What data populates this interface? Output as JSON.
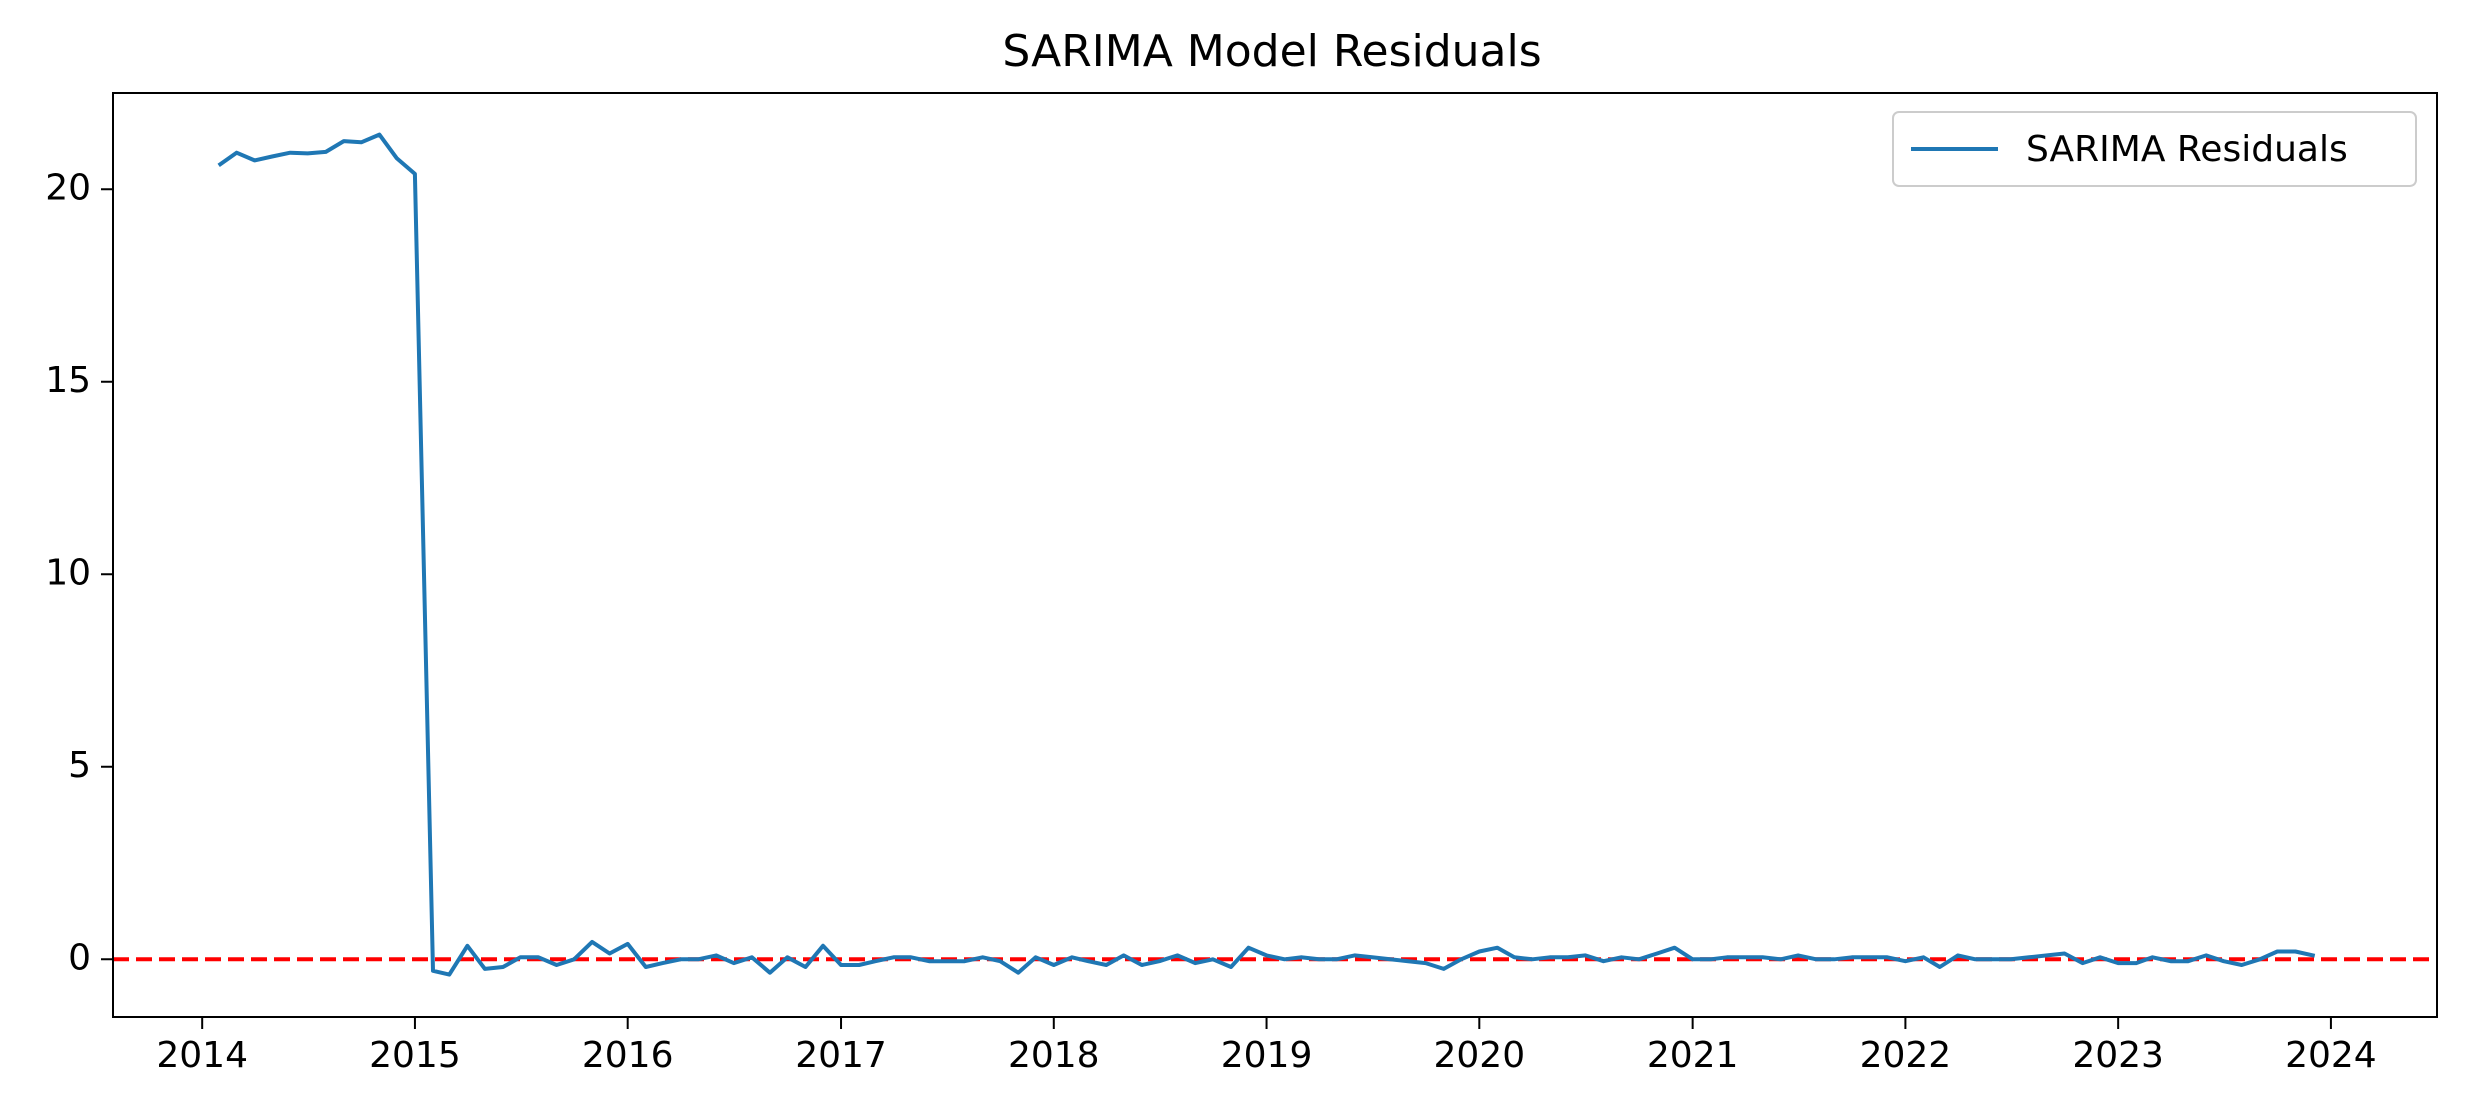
{
  "chart_data": {
    "type": "line",
    "title": "SARIMA Model Residuals",
    "xlabel": "",
    "ylabel": "",
    "xlim": [
      "2013-08-01",
      "2024-07-01"
    ],
    "ylim": [
      -1.5,
      22.5
    ],
    "x_ticks": [
      {
        "date": "2014-01-01",
        "label": "2014"
      },
      {
        "date": "2015-01-01",
        "label": "2015"
      },
      {
        "date": "2016-01-01",
        "label": "2016"
      },
      {
        "date": "2017-01-01",
        "label": "2017"
      },
      {
        "date": "2018-01-01",
        "label": "2018"
      },
      {
        "date": "2019-01-01",
        "label": "2019"
      },
      {
        "date": "2020-01-01",
        "label": "2020"
      },
      {
        "date": "2021-01-01",
        "label": "2021"
      },
      {
        "date": "2022-01-01",
        "label": "2022"
      },
      {
        "date": "2023-01-01",
        "label": "2023"
      },
      {
        "date": "2024-01-01",
        "label": "2024"
      }
    ],
    "y_ticks": [
      {
        "value": 0,
        "label": "0"
      },
      {
        "value": 5,
        "label": "5"
      },
      {
        "value": 10,
        "label": "10"
      },
      {
        "value": 15,
        "label": "15"
      },
      {
        "value": 20,
        "label": "20"
      }
    ],
    "grid": false,
    "legend_position": "top-right",
    "reference_line": {
      "y": 0,
      "color": "#ff0000",
      "style": "dashed"
    },
    "series": [
      {
        "name": "SARIMA Residuals",
        "color": "#1f77b4",
        "x": [
          "2014-02",
          "2014-03",
          "2014-04",
          "2014-05",
          "2014-06",
          "2014-07",
          "2014-08",
          "2014-09",
          "2014-10",
          "2014-11",
          "2014-12",
          "2015-01",
          "2015-02",
          "2015-03",
          "2015-04",
          "2015-05",
          "2015-06",
          "2015-07",
          "2015-08",
          "2015-09",
          "2015-10",
          "2015-11",
          "2015-12",
          "2016-01",
          "2016-02",
          "2016-03",
          "2016-04",
          "2016-05",
          "2016-06",
          "2016-07",
          "2016-08",
          "2016-09",
          "2016-10",
          "2016-11",
          "2016-12",
          "2017-01",
          "2017-02",
          "2017-03",
          "2017-04",
          "2017-05",
          "2017-06",
          "2017-07",
          "2017-08",
          "2017-09",
          "2017-10",
          "2017-11",
          "2017-12",
          "2018-01",
          "2018-02",
          "2018-03",
          "2018-04",
          "2018-05",
          "2018-06",
          "2018-07",
          "2018-08",
          "2018-09",
          "2018-10",
          "2018-11",
          "2018-12",
          "2019-01",
          "2019-02",
          "2019-03",
          "2019-04",
          "2019-05",
          "2019-06",
          "2019-07",
          "2019-08",
          "2019-09",
          "2019-10",
          "2019-11",
          "2019-12",
          "2020-01",
          "2020-02",
          "2020-03",
          "2020-04",
          "2020-05",
          "2020-06",
          "2020-07",
          "2020-08",
          "2020-09",
          "2020-10",
          "2020-11",
          "2020-12",
          "2021-01",
          "2021-02",
          "2021-03",
          "2021-04",
          "2021-05",
          "2021-06",
          "2021-07",
          "2021-08",
          "2021-09",
          "2021-10",
          "2021-11",
          "2021-12",
          "2022-01",
          "2022-02",
          "2022-03",
          "2022-04",
          "2022-05",
          "2022-06",
          "2022-07",
          "2022-08",
          "2022-09",
          "2022-10",
          "2022-11",
          "2022-12",
          "2023-01",
          "2023-02",
          "2023-03",
          "2023-04",
          "2023-05",
          "2023-06",
          "2023-07",
          "2023-08",
          "2023-09",
          "2023-10",
          "2023-11",
          "2023-12"
        ],
        "values": [
          20.65,
          20.95,
          20.75,
          20.85,
          20.95,
          20.93,
          20.97,
          21.25,
          21.22,
          21.42,
          20.8,
          20.4,
          -0.3,
          -0.4,
          0.35,
          -0.25,
          -0.2,
          0.05,
          0.05,
          -0.15,
          0.0,
          0.45,
          0.15,
          0.4,
          -0.2,
          -0.1,
          0.0,
          0.0,
          0.1,
          -0.1,
          0.05,
          -0.35,
          0.05,
          -0.2,
          0.35,
          -0.15,
          -0.15,
          -0.05,
          0.05,
          0.05,
          -0.05,
          -0.05,
          -0.05,
          0.05,
          -0.05,
          -0.35,
          0.05,
          -0.15,
          0.05,
          -0.05,
          -0.15,
          0.1,
          -0.15,
          -0.05,
          0.1,
          -0.1,
          0.0,
          -0.2,
          0.3,
          0.1,
          0.0,
          0.05,
          0.0,
          0.0,
          0.1,
          0.05,
          0.0,
          -0.05,
          -0.1,
          -0.25,
          0.0,
          0.2,
          0.3,
          0.05,
          0.0,
          0.05,
          0.05,
          0.1,
          -0.05,
          0.05,
          0.0,
          0.15,
          0.3,
          0.0,
          0.0,
          0.05,
          0.05,
          0.05,
          0.0,
          0.1,
          0.0,
          0.0,
          0.05,
          0.05,
          0.05,
          -0.05,
          0.05,
          -0.2,
          0.1,
          0.0,
          0.0,
          0.0,
          0.05,
          0.1,
          0.15,
          -0.1,
          0.05,
          -0.1,
          -0.1,
          0.05,
          -0.05,
          -0.05,
          0.1,
          -0.05,
          -0.15,
          0.0,
          0.2,
          0.2,
          0.1
        ]
      }
    ]
  }
}
